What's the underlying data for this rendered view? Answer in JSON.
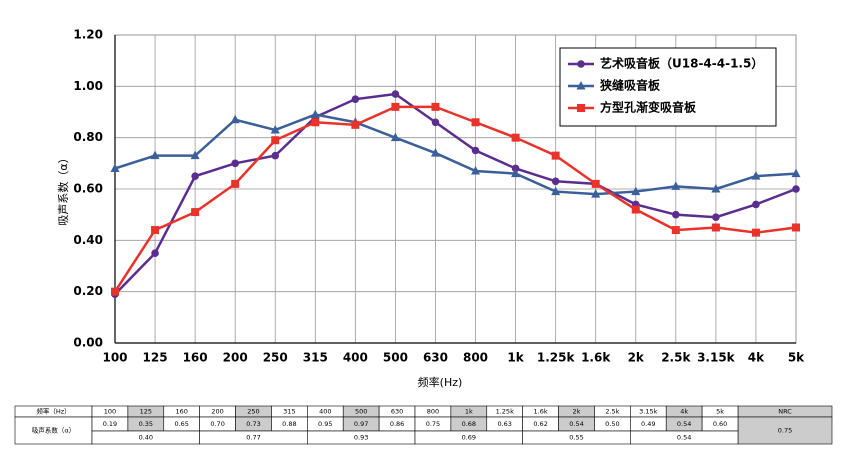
{
  "chart_data": {
    "type": "line",
    "y_label": "吸声系数（α）",
    "x_label": "频率(Hz)",
    "categories": [
      "100",
      "125",
      "160",
      "200",
      "250",
      "315",
      "400",
      "500",
      "630",
      "800",
      "1k",
      "1.25k",
      "1.6k",
      "2k",
      "2.5k",
      "3.15k",
      "4k",
      "5k"
    ],
    "series": [
      {
        "name": "艺术吸音板（U18-4-4-1.5）",
        "color": "#5b2d8e",
        "marker": "circle",
        "values": [
          0.19,
          0.35,
          0.65,
          0.7,
          0.73,
          0.88,
          0.95,
          0.97,
          0.86,
          0.75,
          0.68,
          0.63,
          0.62,
          0.54,
          0.5,
          0.49,
          0.54,
          0.6
        ]
      },
      {
        "name": "狭缝吸音板",
        "color": "#3a5f9a",
        "marker": "triangle",
        "values": [
          0.68,
          0.73,
          0.73,
          0.87,
          0.83,
          0.89,
          0.86,
          0.8,
          0.74,
          0.67,
          0.66,
          0.59,
          0.58,
          0.59,
          0.61,
          0.6,
          0.65,
          0.66
        ]
      },
      {
        "name": "方型孔渐变吸音板",
        "color": "#e8322a",
        "marker": "square",
        "values": [
          0.2,
          0.44,
          0.51,
          0.62,
          0.79,
          0.86,
          0.85,
          0.92,
          0.92,
          0.86,
          0.8,
          0.73,
          0.62,
          0.52,
          0.44,
          0.45,
          0.43,
          0.45
        ]
      }
    ],
    "ylim": [
      0,
      1.2
    ],
    "yticks": [
      {
        "value": 0,
        "label": "0.00"
      },
      {
        "value": 0.2,
        "label": "0.20"
      },
      {
        "value": 0.4,
        "label": "0.40"
      },
      {
        "value": 0.6,
        "label": "0.60"
      },
      {
        "value": 0.8,
        "label": "0.80"
      },
      {
        "value": 1,
        "label": "1.00"
      },
      {
        "value": 1.2,
        "label": "1.20"
      }
    ],
    "grid": true,
    "legend": "upper right"
  },
  "table": {
    "header_label": "频率（Hz）",
    "nrc_label": "NRC",
    "row_label": "吸声系数（α）",
    "values": [
      "0.19",
      "0.35",
      "0.65",
      "0.70",
      "0.73",
      "0.88",
      "0.95",
      "0.97",
      "0.86",
      "0.75",
      "0.68",
      "0.63",
      "0.62",
      "0.54",
      "0.50",
      "0.49",
      "0.54",
      "0.60"
    ],
    "octave_values": [
      "0.40",
      "0.77",
      "0.93",
      "0.69",
      "0.55",
      "0.54"
    ],
    "nrc": "0.75"
  }
}
